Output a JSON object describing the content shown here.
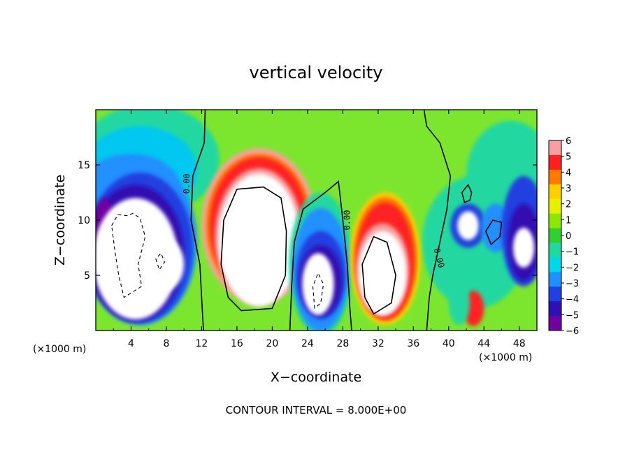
{
  "chart_data": {
    "type": "heatmap",
    "title": "vertical velocity",
    "xlabel": "X−coordinate",
    "ylabel": "Z−coordinate",
    "x_unit_label": "(×1000 m)",
    "x_unit_label_right": "(×1000 m)",
    "xlim": [
      0,
      50
    ],
    "ylim": [
      0,
      20
    ],
    "x_ticks": [
      4,
      8,
      12,
      16,
      20,
      24,
      28,
      32,
      36,
      40,
      44,
      48
    ],
    "y_ticks": [
      5,
      10,
      15
    ],
    "colorbar": {
      "ticks": [
        "6",
        "5",
        "4",
        "3",
        "2",
        "1",
        "0",
        "−1",
        "−2",
        "−3",
        "−4",
        "−5",
        "−6"
      ],
      "range": [
        -6,
        6
      ],
      "colors": [
        "#f8a0a0",
        "#ff2020",
        "#ff7a00",
        "#ffd000",
        "#e8f000",
        "#8ce800",
        "#30d030",
        "#20d8a0",
        "#00d8e8",
        "#2090ff",
        "#2040e0",
        "#3010b0",
        "#7000a0"
      ]
    },
    "contour_labels": [
      "0.00",
      "0.00",
      "0.00"
    ],
    "contour_interval_text": "CONTOUR INTERVAL = 8.000E+00",
    "features": [
      {
        "kind": "updraft",
        "x": 18.5,
        "z": 9,
        "w_max": 6
      },
      {
        "kind": "updraft",
        "x": 33,
        "z": 6.5,
        "w_max": 6
      },
      {
        "kind": "updraft",
        "x": 42.5,
        "z": 2,
        "w_max": 4
      },
      {
        "kind": "downdraft",
        "x": 4.5,
        "z": 6.5,
        "w_min": -6
      },
      {
        "kind": "downdraft",
        "x": 25.5,
        "z": 5,
        "w_min": -6
      },
      {
        "kind": "downdraft",
        "x": 42,
        "z": 9.5,
        "w_min": -5
      },
      {
        "kind": "downdraft",
        "x": 47.5,
        "z": 8,
        "w_min": -6
      }
    ]
  }
}
